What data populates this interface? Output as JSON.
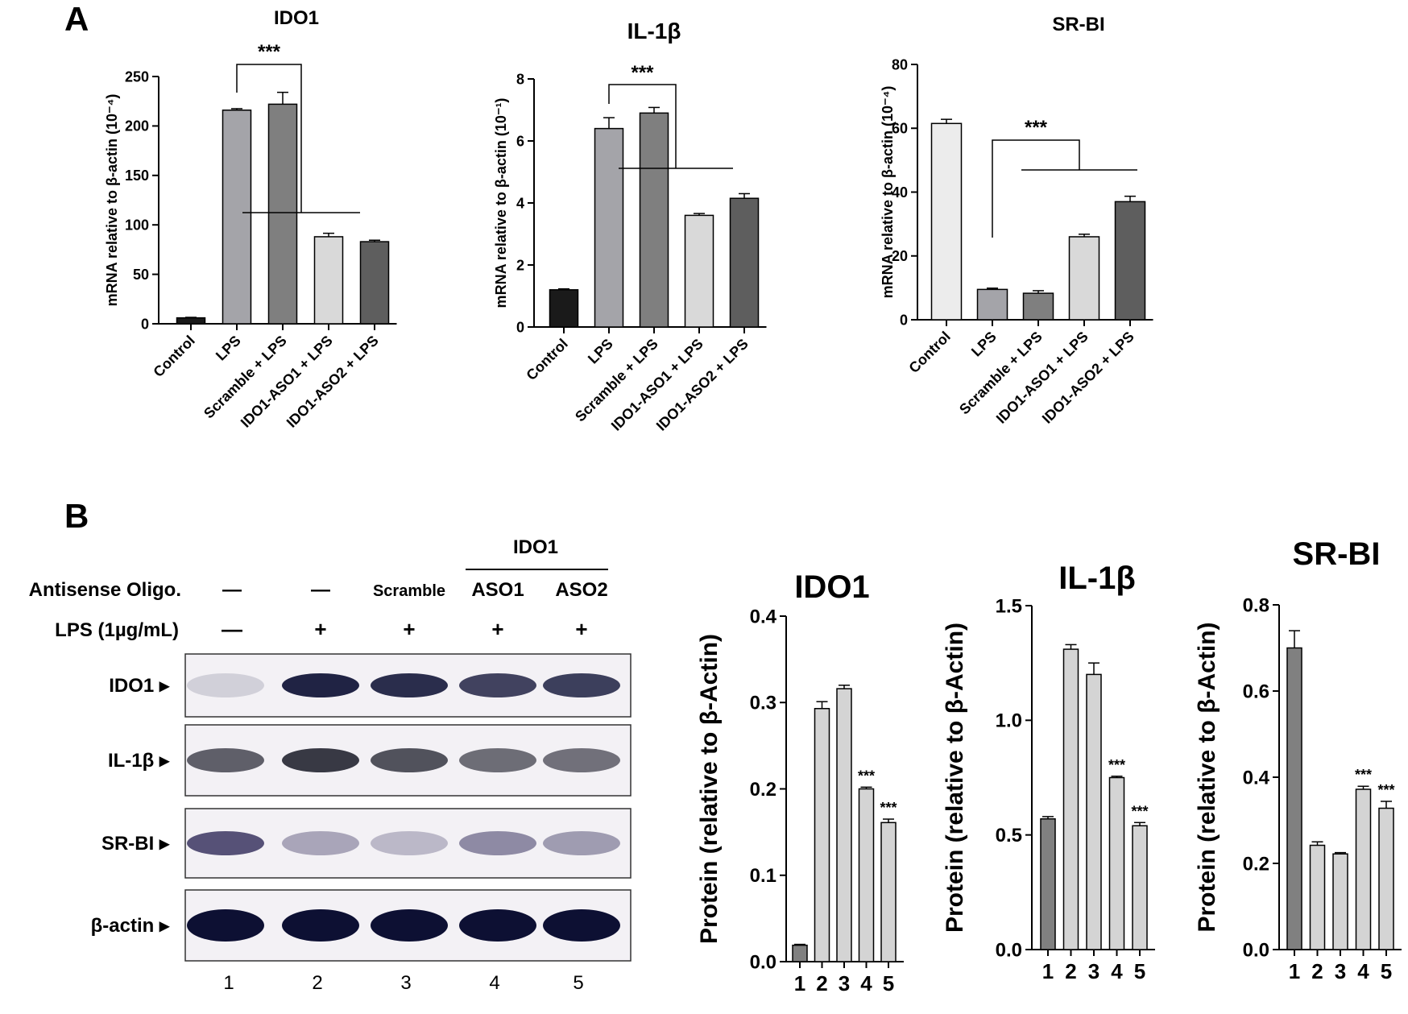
{
  "panels": {
    "a_label": "A",
    "b_label": "B"
  },
  "blot": {
    "group_header": "IDO1",
    "row_labels": {
      "oligo": "Antisense Oligo.",
      "lps": "LPS (1µg/mL)"
    },
    "oligo_values": [
      "—",
      "—",
      "Scramble",
      "ASO1",
      "ASO2"
    ],
    "lps_values": [
      "—",
      "+",
      "+",
      "+",
      "+"
    ],
    "band_labels": [
      "IDO1 ▸",
      "IL-1β ▸",
      "SR-BI ▸",
      "β-actin ▸"
    ],
    "lane_numbers": [
      "1",
      "2",
      "3",
      "4",
      "5"
    ]
  },
  "chart_data": [
    {
      "id": "a-ido1",
      "type": "bar",
      "title": "IDO1",
      "ylabel": "mRNA relative to β-actin (10⁻⁴)",
      "categories": [
        "Control",
        "LPS",
        "Scramble + LPS",
        "IDO1-ASO1 + LPS",
        "IDO1-ASO2 + LPS"
      ],
      "values": [
        6,
        216,
        222,
        88,
        83
      ],
      "errors": [
        0.5,
        1.5,
        12,
        3.5,
        1.5
      ],
      "colors": [
        "#1a1a1a",
        "#a4a4a9",
        "#7f7f7f",
        "#d9d9d9",
        "#5e5e5e"
      ],
      "ylim": [
        0,
        250
      ],
      "yticks": [
        0,
        50,
        100,
        150,
        200,
        250
      ],
      "significance": "***"
    },
    {
      "id": "a-il1b",
      "type": "bar",
      "title": "IL-1β",
      "ylabel": "mRNA relative to β-actin (10⁻¹)",
      "categories": [
        "Control",
        "LPS",
        "Scramble + LPS",
        "IDO1-ASO1 + LPS",
        "IDO1-ASO2 + LPS"
      ],
      "values": [
        1.2,
        6.4,
        6.9,
        3.6,
        4.15
      ],
      "errors": [
        0.03,
        0.35,
        0.18,
        0.06,
        0.15
      ],
      "colors": [
        "#1a1a1a",
        "#a4a4a9",
        "#7f7f7f",
        "#d9d9d9",
        "#5e5e5e"
      ],
      "ylim": [
        0,
        8
      ],
      "yticks": [
        0,
        2,
        4,
        6,
        8
      ],
      "significance": "***"
    },
    {
      "id": "a-srbi",
      "type": "bar",
      "title": "SR-BI",
      "ylabel": "mRNA relative to β-actin (10⁻⁴)",
      "categories": [
        "Control",
        "LPS",
        "Scramble + LPS",
        "IDO1-ASO1 + LPS",
        "IDO1-ASO2 + LPS"
      ],
      "values": [
        61.5,
        9.5,
        8.3,
        26,
        37
      ],
      "errors": [
        1.3,
        0.4,
        0.8,
        0.8,
        1.7
      ],
      "colors": [
        "#ececec",
        "#a4a4a9",
        "#7f7f7f",
        "#d9d9d9",
        "#5e5e5e"
      ],
      "ylim": [
        0,
        80
      ],
      "yticks": [
        0,
        20,
        40,
        60,
        80
      ],
      "significance": "***"
    },
    {
      "id": "b-ido1",
      "type": "bar",
      "title": "IDO1",
      "ylabel": "Protein (relative to β-Actin)",
      "categories": [
        "1",
        "2",
        "3",
        "4",
        "5"
      ],
      "values": [
        0.019,
        0.293,
        0.316,
        0.2,
        0.161
      ],
      "errors": [
        0.001,
        0.008,
        0.004,
        0.002,
        0.004
      ],
      "colors": [
        "#808080",
        "#d4d4d4",
        "#d4d4d4",
        "#d4d4d4",
        "#d4d4d4"
      ],
      "ylim": [
        0,
        0.4
      ],
      "yticks": [
        0.0,
        0.1,
        0.2,
        0.3,
        0.4
      ],
      "decimals": 1,
      "stars": [
        "",
        "",
        "",
        "***",
        "***"
      ]
    },
    {
      "id": "b-il1b",
      "type": "bar",
      "title": "IL-1β",
      "ylabel": "Protein (relative to β-Actin)",
      "categories": [
        "1",
        "2",
        "3",
        "4",
        "5"
      ],
      "values": [
        0.57,
        1.31,
        1.2,
        0.75,
        0.54
      ],
      "errors": [
        0.01,
        0.02,
        0.05,
        0.006,
        0.014
      ],
      "colors": [
        "#808080",
        "#d4d4d4",
        "#d4d4d4",
        "#d4d4d4",
        "#d4d4d4"
      ],
      "ylim": [
        0,
        1.5
      ],
      "yticks": [
        0.0,
        0.5,
        1.0,
        1.5
      ],
      "decimals": 1,
      "stars": [
        "",
        "",
        "",
        "***",
        "***"
      ]
    },
    {
      "id": "b-srbi",
      "type": "bar",
      "title": "SR-BI",
      "ylabel": "Protein (relative to β-Actin)",
      "categories": [
        "1",
        "2",
        "3",
        "4",
        "5"
      ],
      "values": [
        0.7,
        0.242,
        0.222,
        0.372,
        0.328
      ],
      "errors": [
        0.04,
        0.008,
        0.003,
        0.007,
        0.016
      ],
      "colors": [
        "#808080",
        "#d4d4d4",
        "#d4d4d4",
        "#d4d4d4",
        "#d4d4d4"
      ],
      "ylim": [
        0,
        0.8
      ],
      "yticks": [
        0.0,
        0.2,
        0.4,
        0.6,
        0.8
      ],
      "decimals": 1,
      "stars": [
        "",
        "",
        "",
        "***",
        "***"
      ]
    }
  ]
}
